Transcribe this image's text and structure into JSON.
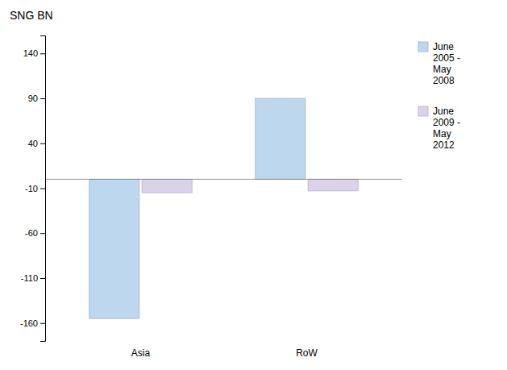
{
  "chart_data": {
    "type": "bar",
    "title": "SNG BN",
    "categories": [
      "Asia",
      "RoW"
    ],
    "series": [
      {
        "name": "June\n2005 -\nMay\n2008",
        "color": "#BDD7EE",
        "values": [
          -155,
          90
        ]
      },
      {
        "name": "June\n2009 -\nMay\n2012",
        "color": "#D9D2E9",
        "values": [
          -15,
          -13
        ]
      }
    ],
    "ylim": [
      -180,
      160
    ],
    "yticks": [
      -160,
      -110,
      -60,
      -10,
      40,
      90,
      140
    ],
    "grid": false,
    "legend": "right"
  }
}
